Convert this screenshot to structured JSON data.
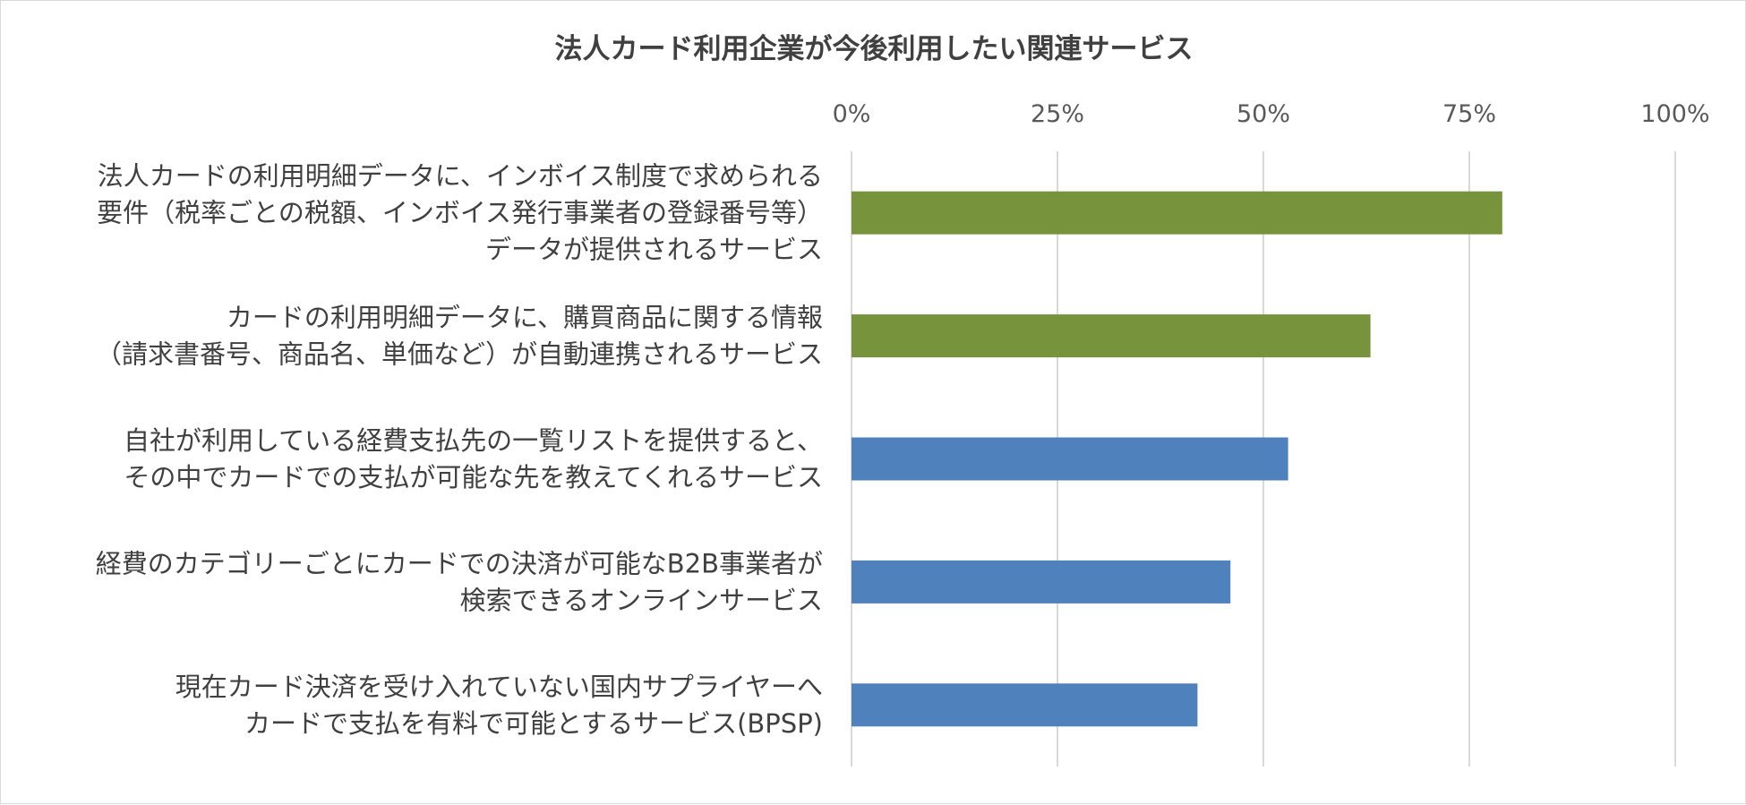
{
  "chart_data": {
    "type": "bar",
    "orientation": "horizontal",
    "title": "法人カード利用企業が今後利用したい関連サービス",
    "xlim": [
      0,
      100
    ],
    "x_ticks": [
      "0%",
      "25%",
      "50%",
      "75%",
      "100%"
    ],
    "grid": true,
    "categories": [
      [
        "法人カードの利用明細データに、インボイス制度で求められる",
        "要件（税率ごとの税額、インボイス発行事業者の登録番号等）",
        "データが提供されるサービス"
      ],
      [
        "カードの利用明細データに、購買商品に関する情報",
        "（請求書番号、商品名、単価など）が自動連携されるサービス"
      ],
      [
        "自社が利用している経費支払先の一覧リストを提供すると、",
        "その中でカードでの支払が可能な先を教えてくれるサービス"
      ],
      [
        "経費のカテゴリーごとにカードでの決済が可能なB2B事業者が",
        "検索できるオンラインサービス"
      ],
      [
        "現在カード決済を受け入れていない国内サプライヤーへ",
        "カードで支払を有料で可能とするサービス(BPSP)"
      ]
    ],
    "values": [
      79,
      63,
      53,
      46,
      42
    ],
    "bar_colors": [
      "#77933c",
      "#77933c",
      "#4f81bd",
      "#4f81bd",
      "#4f81bd"
    ]
  }
}
